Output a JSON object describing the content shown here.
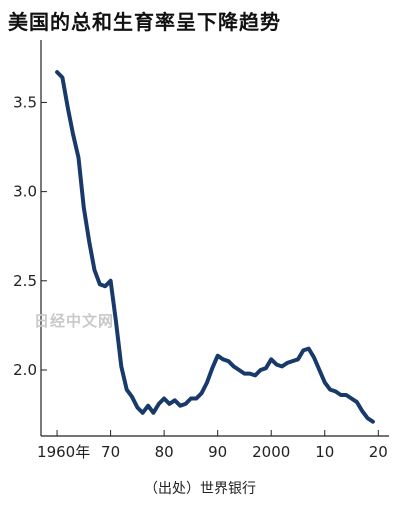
{
  "chart_data": {
    "type": "line",
    "title": "美国的总和生育率呈下降趋势",
    "xlabel": "",
    "ylabel": "",
    "xlim": [
      1957,
      2022
    ],
    "ylim": [
      1.63,
      3.85
    ],
    "grid": false,
    "x_ticks": [
      1960,
      1970,
      1980,
      1990,
      2000,
      2010,
      2020
    ],
    "x_tick_labels": [
      "1960年",
      "70",
      "80",
      "90",
      "2000",
      "10",
      "20"
    ],
    "y_ticks": [
      2.0,
      2.5,
      3.0,
      3.5
    ],
    "y_tick_labels": [
      "2.0",
      "2.5",
      "3.0",
      "3.5"
    ],
    "line_color": "#183a6b",
    "series": [
      {
        "name": "",
        "x": [
          1960,
          1961,
          1962,
          1963,
          1964,
          1965,
          1966,
          1967,
          1968,
          1969,
          1970,
          1971,
          1972,
          1973,
          1974,
          1975,
          1976,
          1977,
          1978,
          1979,
          1980,
          1981,
          1982,
          1983,
          1984,
          1985,
          1986,
          1987,
          1988,
          1989,
          1990,
          1991,
          1992,
          1993,
          1994,
          1995,
          1996,
          1997,
          1998,
          1999,
          2000,
          2001,
          2002,
          2003,
          2004,
          2005,
          2006,
          2007,
          2008,
          2009,
          2010,
          2011,
          2012,
          2013,
          2014,
          2015,
          2016,
          2017,
          2018,
          2019
        ],
        "values": [
          3.67,
          3.64,
          3.47,
          3.32,
          3.19,
          2.91,
          2.72,
          2.56,
          2.48,
          2.47,
          2.5,
          2.27,
          2.02,
          1.89,
          1.85,
          1.79,
          1.76,
          1.8,
          1.76,
          1.81,
          1.84,
          1.81,
          1.83,
          1.8,
          1.81,
          1.84,
          1.84,
          1.87,
          1.93,
          2.01,
          2.08,
          2.06,
          2.05,
          2.02,
          2.0,
          1.98,
          1.98,
          1.97,
          2.0,
          2.01,
          2.06,
          2.03,
          2.02,
          2.04,
          2.05,
          2.06,
          2.11,
          2.12,
          2.07,
          2.0,
          1.93,
          1.89,
          1.88,
          1.86,
          1.86,
          1.84,
          1.82,
          1.77,
          1.73,
          1.71
        ]
      }
    ]
  },
  "source": "（出处）世界银行",
  "watermark": "日经中文网"
}
